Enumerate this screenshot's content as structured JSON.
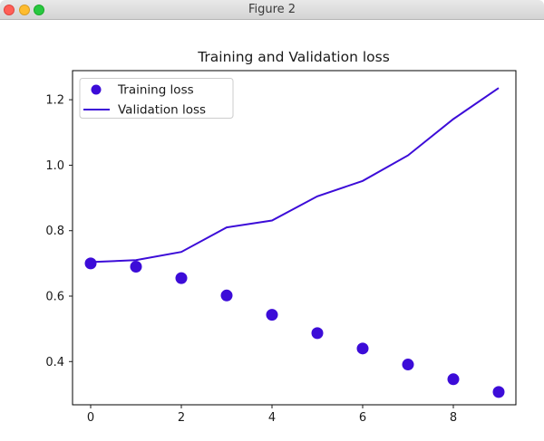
{
  "window": {
    "title": "Figure 2",
    "traffic_lights": [
      "close",
      "minimize",
      "zoom"
    ]
  },
  "chart_data": {
    "type": "scatter+line",
    "title": "Training and Validation loss",
    "x": [
      0,
      1,
      2,
      3,
      4,
      5,
      6,
      7,
      8,
      9
    ],
    "series": [
      {
        "name": "Training loss",
        "style": "scatter",
        "marker": "circle",
        "values": [
          0.7,
          0.69,
          0.655,
          0.602,
          0.543,
          0.487,
          0.44,
          0.391,
          0.346,
          0.307
        ]
      },
      {
        "name": "Validation loss",
        "style": "line",
        "values": [
          0.704,
          0.71,
          0.735,
          0.81,
          0.831,
          0.905,
          0.952,
          1.03,
          1.141,
          1.236
        ]
      }
    ],
    "xticks": [
      0,
      2,
      4,
      6,
      8
    ],
    "xtick_labels": [
      "0",
      "2",
      "4",
      "6",
      "8"
    ],
    "yticks": [
      0.4,
      0.6,
      0.8,
      1.0,
      1.2
    ],
    "ytick_labels": [
      "0.4",
      "0.6",
      "0.8",
      "1.0",
      "1.2"
    ],
    "xlim": [
      -0.4,
      9.38
    ],
    "ylim": [
      0.268,
      1.289
    ],
    "xlabel": "",
    "ylabel": "",
    "grid": false,
    "legend_position": "upper left",
    "accent_color": "#3c0cd8"
  }
}
